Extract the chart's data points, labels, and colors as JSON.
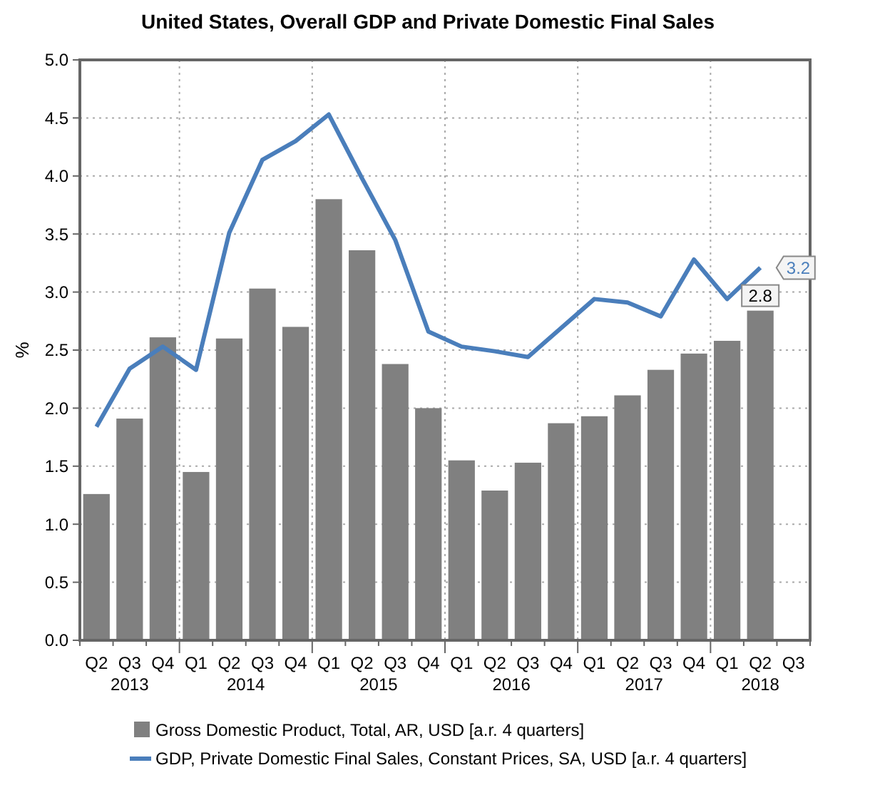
{
  "chart_data": {
    "type": "bar",
    "title": "United States, Overall GDP and Private Domestic Final Sales",
    "ylabel": "%",
    "categories": [
      "Q2",
      "Q3",
      "Q4",
      "Q1",
      "Q2",
      "Q3",
      "Q4",
      "Q1",
      "Q2",
      "Q3",
      "Q4",
      "Q1",
      "Q2",
      "Q3",
      "Q4",
      "Q1",
      "Q2",
      "Q3",
      "Q4",
      "Q1",
      "Q2",
      "Q3"
    ],
    "annotations": [
      "2013",
      "2014",
      "2015",
      "2016",
      "2017",
      "2018"
    ],
    "series": [
      {
        "name": "Gross Domestic Product, Total, AR, USD [a.r. 4 quarters]",
        "color": "#808080",
        "values": [
          1.26,
          1.91,
          2.61,
          1.45,
          2.6,
          3.03,
          2.7,
          3.8,
          3.36,
          2.38,
          2.0,
          1.55,
          1.29,
          1.53,
          1.87,
          1.93,
          2.11,
          2.33,
          2.47,
          2.58,
          2.84,
          null
        ],
        "value_labels": [
          null,
          null,
          null,
          null,
          null,
          null,
          null,
          null,
          null,
          null,
          null,
          null,
          null,
          null,
          null,
          null,
          null,
          null,
          null,
          null,
          "2.8",
          null
        ]
      },
      {
        "name": "GDP, Private Domestic Final Sales, Constant Prices, SA, USD [a.r. 4 quarters]",
        "type": "line",
        "color": "#4a7ebb",
        "values": [
          1.84,
          2.34,
          2.53,
          2.33,
          3.51,
          4.14,
          4.3,
          4.53,
          3.98,
          3.45,
          2.66,
          2.53,
          2.49,
          2.44,
          2.69,
          2.94,
          2.91,
          2.79,
          3.28,
          2.94,
          3.21,
          null
        ],
        "value_labels": [
          null,
          null,
          null,
          null,
          null,
          null,
          null,
          null,
          null,
          null,
          null,
          null,
          null,
          null,
          null,
          null,
          null,
          null,
          null,
          null,
          "3.2",
          null
        ]
      }
    ],
    "ylim": [
      0,
      5
    ],
    "yticks": [
      {
        "value": 0,
        "label": "0.0"
      },
      {
        "value": 0.5,
        "label": "0.5"
      },
      {
        "value": 1,
        "label": "1.0"
      },
      {
        "value": 1.5,
        "label": "1.5"
      },
      {
        "value": 2,
        "label": "2.0"
      },
      {
        "value": 2.5,
        "label": "2.5"
      },
      {
        "value": 3,
        "label": "3.0"
      },
      {
        "value": 3.5,
        "label": "3.5"
      },
      {
        "value": 4,
        "label": "4.0"
      },
      {
        "value": 4.5,
        "label": "4.5"
      },
      {
        "value": 5,
        "label": "5.0"
      }
    ],
    "grid": true,
    "legend": "bottom"
  }
}
